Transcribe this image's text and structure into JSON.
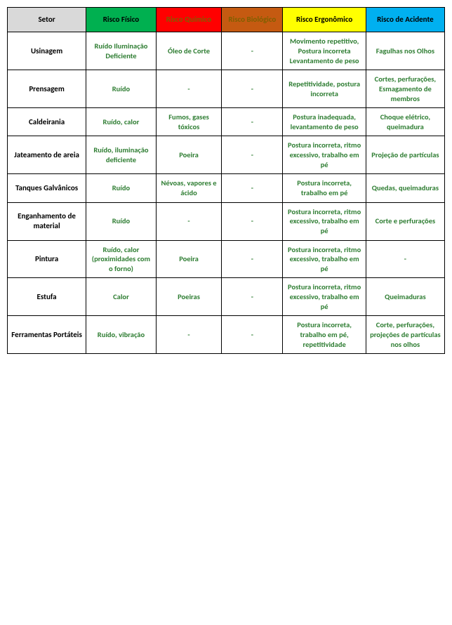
{
  "table": {
    "type": "table",
    "columns": [
      {
        "label": "Setor",
        "bg": "#d9d9d9",
        "fg": "#000000"
      },
      {
        "label": "Risco Físico",
        "bg": "#00b050",
        "fg": "#000000"
      },
      {
        "label": "Risco Químico",
        "bg": "#ff0000",
        "fg": "#7f6000"
      },
      {
        "label": "Risco Biológico",
        "bg": "#c55a11",
        "fg": "#7f6000"
      },
      {
        "label": "Risco Ergonômico",
        "bg": "#ffff00",
        "fg": "#000000"
      },
      {
        "label": "Risco de Acidente",
        "bg": "#00b0f0",
        "fg": "#000000"
      }
    ],
    "cell_text_color": "#2e7d32",
    "sector_text_color": "#000000",
    "col_widths_pct": [
      18,
      16,
      15,
      14,
      19,
      18
    ],
    "header_fontsize": 11,
    "cell_fontsize": 10.5,
    "background_color": "#ffffff",
    "border_color": "#000000",
    "rows": [
      {
        "sector": "Usinagem",
        "cells": [
          "Ruído Iluminação Deficiente",
          "Óleo de Corte",
          "-",
          "Movimento repetitivo, Postura incorreta Levantamento de peso",
          "Fagulhas nos Olhos"
        ]
      },
      {
        "sector": "Prensagem",
        "cells": [
          "Ruído",
          "-",
          "-",
          "Repetitividade, postura incorreta",
          "Cortes, perfurações, Esmagamento de membros"
        ]
      },
      {
        "sector": "Caldeirania",
        "cells": [
          "Ruído, calor",
          "Fumos, gases tóxicos",
          "-",
          "Postura inadequada, levantamento de peso",
          "Choque elétrico, queimadura"
        ]
      },
      {
        "sector": "Jateamento de areia",
        "cells": [
          "Ruído, iluminação deficiente",
          "Poeira",
          "-",
          "Postura incorreta, ritmo excessivo, trabalho em pé",
          "Projeção de partículas"
        ]
      },
      {
        "sector": "Tanques Galvânicos",
        "cells": [
          "Ruído",
          "Névoas, vapores e ácido",
          "-",
          "Postura incorreta, trabalho em pé",
          "Quedas, queimaduras"
        ]
      },
      {
        "sector": "Enganhamento de material",
        "cells": [
          "Ruído",
          "-",
          "-",
          "Postura incorreta, ritmo excessivo, trabalho em pé",
          "Corte e perfurações"
        ]
      },
      {
        "sector": "Pintura",
        "cells": [
          "Ruído, calor (proximidades com o forno)",
          "Poeira",
          "-",
          "Postura incorreta, ritmo excessivo, trabalho em pé",
          "-"
        ]
      },
      {
        "sector": "Estufa",
        "cells": [
          "Calor",
          "Poeiras",
          "-",
          "Postura incorreta, ritmo excessivo, trabalho em pé",
          "Queimaduras"
        ]
      },
      {
        "sector": "Ferramentas Portáteis",
        "cells": [
          "Ruído, vibração",
          "-",
          "-",
          "Postura incorreta, trabalho em pé, repetitividade",
          "Corte, perfurações, projeções de partículas nos olhos"
        ]
      }
    ]
  }
}
